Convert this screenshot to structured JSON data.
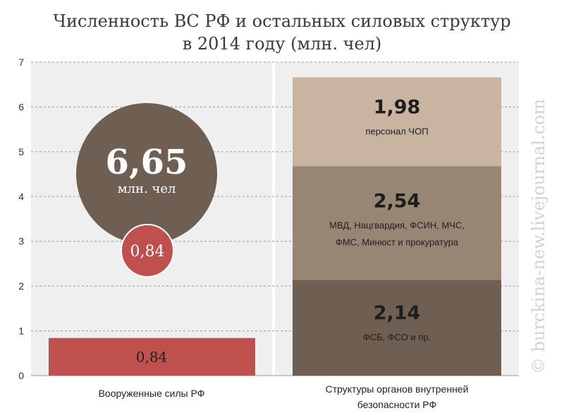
{
  "chart_data": {
    "type": "bar",
    "title": "Численность ВС РФ и остальных силовых структур в 2014 году (млн. чел)",
    "ylim": [
      0,
      7
    ],
    "yticks": [
      "0",
      "1",
      "2",
      "3",
      "4",
      "5",
      "6",
      "7"
    ],
    "grid": true,
    "categories": [
      "Вооруженные силы РФ",
      "Структуры органов внутренней безопасности РФ"
    ],
    "bar": {
      "category": "Вооруженные силы РФ",
      "value": 0.84,
      "label": "0,84",
      "color": "#c0504d"
    },
    "stack": {
      "category": "Структуры органов внутренней безопасности РФ",
      "segments": [
        {
          "value": 2.14,
          "label": "2,14",
          "lines": [
            "ФСБ, ФСО и пр."
          ],
          "color": "#6f5f53"
        },
        {
          "value": 2.54,
          "label": "2,54",
          "lines": [
            "МВД, Нацгвардия, ФСИН, МЧС,",
            "ФМС, Минюст и прокуратура"
          ],
          "color": "#988675"
        },
        {
          "value": 1.98,
          "label": "1,98",
          "lines": [
            "персонал ЧОП"
          ],
          "color": "#c8b4a0"
        }
      ]
    },
    "bubbles": {
      "total": {
        "value": 6.65,
        "label": "6,65",
        "unit": "млн. чел",
        "color": "#6f5f53"
      },
      "army": {
        "value": 0.84,
        "label": "0,84",
        "color": "#c0504d"
      }
    }
  },
  "title_lines": [
    "Численность ВС РФ и остальных силовых структур",
    "в 2014 году (млн. чел)"
  ],
  "watermark": "© burckina-new.livejournal.com",
  "colors": {
    "panel": "#efefef",
    "grid": "#9a9a9a"
  }
}
